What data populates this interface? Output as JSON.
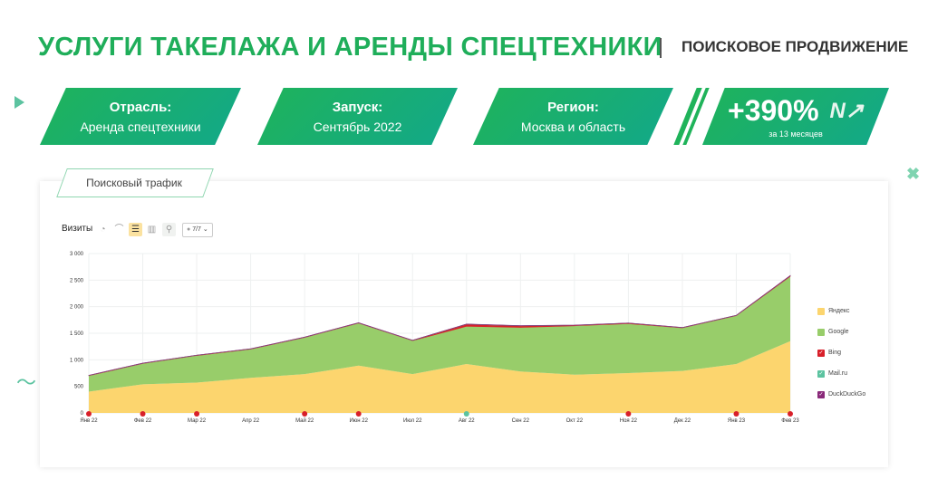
{
  "header": {
    "title": "УСЛУГИ ТАКЕЛАЖА И АРЕНДЫ СПЕЦТЕХНИКИ",
    "subtitle": "ПОИСКОВОЕ ПРОДВИЖЕНИЕ"
  },
  "banners": [
    {
      "label": "Отрасль:",
      "value": "Аренда спецтехники"
    },
    {
      "label": "Запуск:",
      "value": "Сентябрь 2022"
    },
    {
      "label": "Регион:",
      "value": "Москва и область"
    }
  ],
  "growth": {
    "value": "+390%",
    "caption": "за 13 месяцев",
    "icon": "growth-arrow-icon"
  },
  "section_tab": "Поисковый трафик",
  "toolbar": {
    "metric": "Визиты",
    "filter_label": "7/7",
    "icons": [
      "pie-chart-icon",
      "line-chart-icon",
      "stacked-area-icon",
      "bar-chart-icon",
      "map-icon"
    ]
  },
  "colors": {
    "brand": "#1fae5a",
    "yandex": "#fcd56e",
    "google": "#98cd6a",
    "bing": "#d8202a",
    "mailru": "#5cc3a0",
    "duckduckgo": "#8a2a7a"
  },
  "chart_data": {
    "type": "area",
    "stacked": true,
    "categories": [
      "Янв 22",
      "Фев 22",
      "Мар 22",
      "Апр 22",
      "Май 22",
      "Июн 22",
      "Июл 22",
      "Авг 22",
      "Сен 22",
      "Окт 22",
      "Ноя 22",
      "Дек 22",
      "Янв 23",
      "Фев 23"
    ],
    "yticks": [
      "0",
      "500",
      "1 000",
      "1 500",
      "2 000",
      "2 500",
      "3 000"
    ],
    "ylim": [
      0,
      3000
    ],
    "grid": true,
    "legend_position": "right",
    "series": [
      {
        "name": "Яндекс",
        "color": "#fcd56e",
        "values": [
          400,
          540,
          570,
          660,
          730,
          890,
          730,
          920,
          780,
          720,
          750,
          790,
          920,
          1350
        ]
      },
      {
        "name": "Google",
        "color": "#98cd6a",
        "values": [
          300,
          390,
          510,
          540,
          690,
          800,
          630,
          710,
          830,
          920,
          930,
          810,
          910,
          1220
        ]
      },
      {
        "name": "Bing",
        "color": "#d8202a",
        "values": [
          5,
          5,
          5,
          5,
          5,
          5,
          5,
          40,
          30,
          10,
          10,
          5,
          5,
          10
        ]
      },
      {
        "name": "Mail.ru",
        "color": "#5cc3a0",
        "values": [
          2,
          2,
          2,
          2,
          2,
          2,
          2,
          2,
          2,
          2,
          2,
          2,
          2,
          2
        ]
      },
      {
        "name": "DuckDuckGo",
        "color": "#8a2a7a",
        "values": [
          2,
          2,
          2,
          2,
          2,
          2,
          2,
          2,
          2,
          2,
          2,
          2,
          2,
          5
        ]
      }
    ]
  }
}
